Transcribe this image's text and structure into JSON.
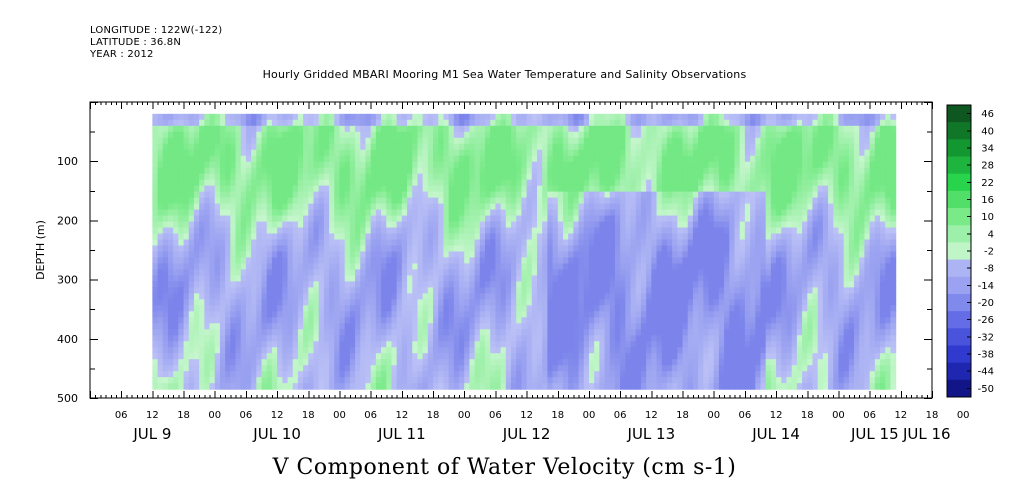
{
  "header": {
    "longitude": "LONGITUDE : 122W(-122)",
    "latitude": "LATITUDE : 36.8N",
    "year": "YEAR : 2012"
  },
  "chart_data": {
    "type": "heatmap",
    "title": "Hourly Gridded MBARI Mooring M1 Sea Water Temperature and Salinity Observations",
    "xlabel": "V Component of Water Velocity (cm s-1)",
    "ylabel": "DEPTH (m)",
    "y_range": [
      500,
      0
    ],
    "y_ticks": [
      100,
      200,
      300,
      400,
      500
    ],
    "x_range_hours": [
      0,
      162
    ],
    "data_hours": [
      12,
      155
    ],
    "data_depth": [
      20,
      485
    ],
    "x_hour_labels": [
      "06",
      "12",
      "18",
      "00",
      "06",
      "12",
      "18",
      "00",
      "06",
      "12",
      "18",
      "00",
      "06",
      "12",
      "18",
      "00",
      "06",
      "12",
      "18",
      "00",
      "06",
      "12",
      "18",
      "00",
      "06",
      "12",
      "18",
      "00"
    ],
    "x_day_labels": [
      "JUL  9",
      "JUL 10",
      "JUL 11",
      "JUL 12",
      "JUL 13",
      "JUL 14",
      "JUL 15",
      "JUL 16"
    ],
    "colorbar": {
      "levels": [
        46,
        40,
        34,
        28,
        22,
        16,
        10,
        4,
        -2,
        -8,
        -14,
        -20,
        -26,
        -32,
        -38,
        -44,
        -50
      ],
      "range": [
        -50,
        50
      ]
    },
    "colors": {
      "negative_mid": "#9ea6ee",
      "positive_mid": "#5fe07a"
    }
  }
}
